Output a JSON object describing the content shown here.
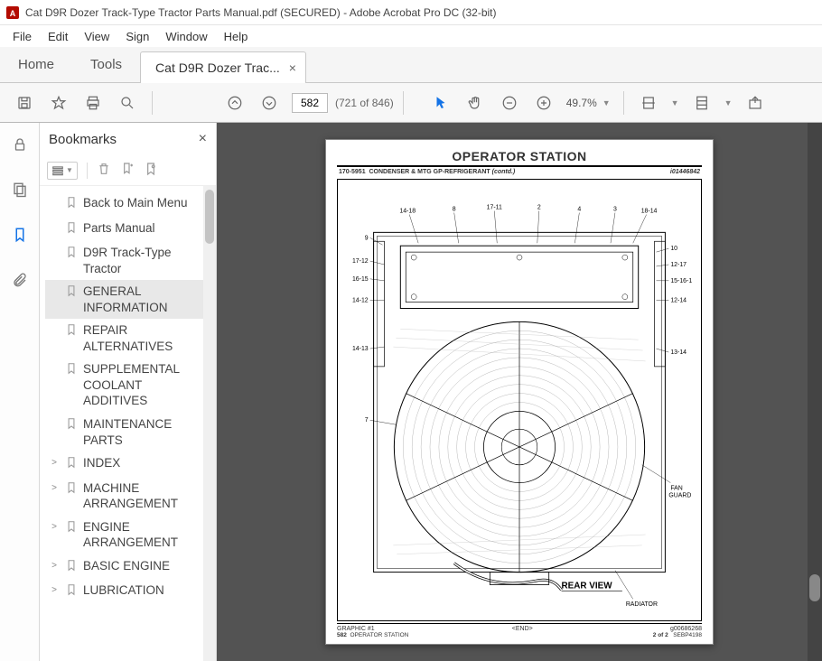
{
  "window": {
    "title": "Cat D9R Dozer Track-Type Tractor Parts Manual.pdf (SECURED) - Adobe Acrobat Pro DC (32-bit)"
  },
  "menu": {
    "items": [
      "File",
      "Edit",
      "View",
      "Sign",
      "Window",
      "Help"
    ]
  },
  "tabs": {
    "home": "Home",
    "tools": "Tools",
    "doc": "Cat D9R Dozer Trac..."
  },
  "toolbar": {
    "page_input": "582",
    "page_total": "(721 of 846)",
    "zoom": "49.7%"
  },
  "side": {
    "title": "Bookmarks",
    "items": [
      {
        "label": "Back to Main Menu",
        "expand": "",
        "selected": false
      },
      {
        "label": "Parts Manual",
        "expand": "",
        "selected": false
      },
      {
        "label": "D9R Track-Type Tractor",
        "expand": "",
        "selected": false
      },
      {
        "label": "GENERAL INFORMATION",
        "expand": "",
        "selected": true
      },
      {
        "label": "REPAIR ALTERNATIVES",
        "expand": "",
        "selected": false
      },
      {
        "label": "SUPPLEMENTAL COOLANT ADDITIVES",
        "expand": "",
        "selected": false
      },
      {
        "label": "MAINTENANCE PARTS",
        "expand": "",
        "selected": false
      },
      {
        "label": "INDEX",
        "expand": ">",
        "selected": false
      },
      {
        "label": "MACHINE ARRANGEMENT",
        "expand": ">",
        "selected": false
      },
      {
        "label": "ENGINE ARRANGEMENT",
        "expand": ">",
        "selected": false
      },
      {
        "label": "BASIC ENGINE",
        "expand": ">",
        "selected": false
      },
      {
        "label": "LUBRICATION",
        "expand": ">",
        "selected": false
      }
    ]
  },
  "page": {
    "header": "OPERATOR STATION",
    "sub_left_code": "170-5951",
    "sub_left_desc": "CONDENSER & MTG GP-REFRIGERANT",
    "sub_left_cont": "(contd.)",
    "sub_right": "i01446842",
    "callouts_top": [
      "14-18",
      "8",
      "17-11",
      "2",
      "4",
      "3",
      "18-14"
    ],
    "callouts_left": [
      "9",
      "17-12",
      "16-15",
      "14-12",
      "14-13",
      "7"
    ],
    "callouts_right": [
      "10",
      "12-17",
      "15-16-1",
      "12-14",
      "13-14"
    ],
    "label_fan_guard": "FAN\nGUARD",
    "label_rear_view": "REAR VIEW",
    "label_radiator": "RADIATOR",
    "graphic_label": "GRAPHIC #1",
    "end_label": "<END>",
    "gcode": "g00686268",
    "page_num": "582",
    "section_name": "OPERATOR STATION",
    "page_of": "2 of 2",
    "doc_code": "SEBP4198"
  },
  "colors": {
    "accent": "#1473e6",
    "doc_bg": "#535353",
    "panel_border": "#d8d8d8",
    "toolbar_bg": "#f7f7f7",
    "selected_bg": "#e8e8e8"
  }
}
